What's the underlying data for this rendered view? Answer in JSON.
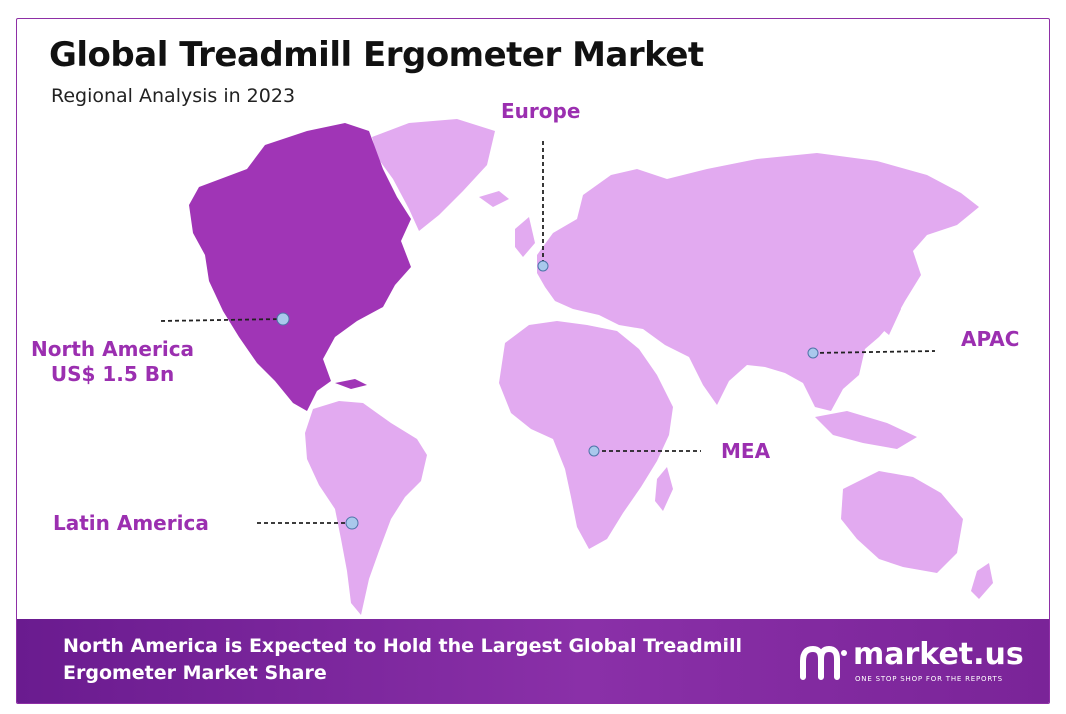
{
  "title": "Global Treadmill Ergometer Market",
  "subtitle": "Regional Analysis in 2023",
  "colors": {
    "highlight_region": "#a035b6",
    "other_regions": "#e2aaf0",
    "label_text": "#9b2fb0",
    "footer_bg": "#7a2498",
    "marker_fill": "#a9c8ec"
  },
  "regions": [
    {
      "id": "north-america",
      "name": "North America",
      "value": "US$ 1.5 Bn",
      "highlighted": true
    },
    {
      "id": "europe",
      "name": "Europe",
      "highlighted": false
    },
    {
      "id": "apac",
      "name": "APAC",
      "highlighted": false
    },
    {
      "id": "mea",
      "name": "MEA",
      "highlighted": false
    },
    {
      "id": "latin-america",
      "name": "Latin America",
      "highlighted": false
    }
  ],
  "footer": {
    "text": "North America is Expected to Hold the Largest Global Treadmill Ergometer Market Share"
  },
  "brand": {
    "name": "market.us",
    "tagline": "ONE STOP SHOP FOR THE REPORTS",
    "logo_icon": "market-us-logo-icon"
  }
}
